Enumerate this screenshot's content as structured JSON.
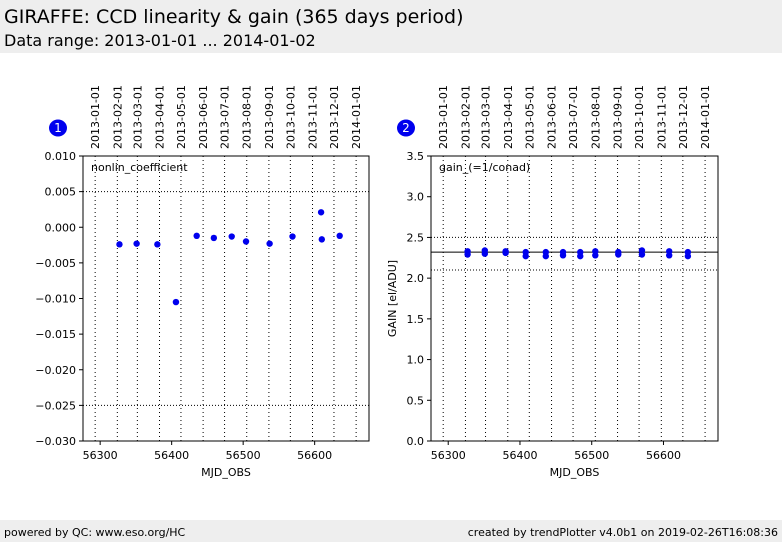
{
  "header": {
    "title": "GIRAFFE: CCD linearity & gain (365 days period)",
    "subtitle": "Data range: 2013-01-01 ... 2014-01-02"
  },
  "footer": {
    "left": "powered by QC: www.eso.org/HC",
    "right": "created by trendPlotter v4.0b1 on 2019-02-26T16:08:36"
  },
  "colors": {
    "points": "#0000ee",
    "badge": "#0000ee"
  },
  "chart_data": [
    {
      "type": "scatter",
      "badge": "1",
      "annotation": "nonlin_coefficient",
      "xlabel": "MJD_OBS",
      "ylabel": "",
      "xlim": [
        56276,
        56676
      ],
      "ylim": [
        -0.03,
        0.01
      ],
      "xticks": [
        56300,
        56400,
        56500,
        56600
      ],
      "yticks": [
        -0.03,
        -0.025,
        -0.02,
        -0.015,
        -0.01,
        -0.005,
        0.0,
        0.005,
        0.01
      ],
      "ytick_labels": [
        "−0.030",
        "−0.025",
        "−0.020",
        "−0.015",
        "−0.010",
        "−0.005",
        "0.000",
        "0.005",
        "0.010"
      ],
      "hlines": [
        0.005,
        -0.025
      ],
      "date_ticks": [
        {
          "mjd": 56293,
          "label": "2013-01-01"
        },
        {
          "mjd": 56324,
          "label": "2013-02-01"
        },
        {
          "mjd": 56352,
          "label": "2013-03-01"
        },
        {
          "mjd": 56383,
          "label": "2013-04-01"
        },
        {
          "mjd": 56413,
          "label": "2013-05-01"
        },
        {
          "mjd": 56444,
          "label": "2013-06-01"
        },
        {
          "mjd": 56474,
          "label": "2013-07-01"
        },
        {
          "mjd": 56505,
          "label": "2013-08-01"
        },
        {
          "mjd": 56536,
          "label": "2013-09-01"
        },
        {
          "mjd": 56566,
          "label": "2013-10-01"
        },
        {
          "mjd": 56597,
          "label": "2013-11-01"
        },
        {
          "mjd": 56627,
          "label": "2013-12-01"
        },
        {
          "mjd": 56658,
          "label": "2014-01-01"
        }
      ],
      "points": [
        [
          56327,
          -0.0024
        ],
        [
          56351,
          -0.0023
        ],
        [
          56380,
          -0.0024
        ],
        [
          56406,
          -0.0105
        ],
        [
          56435,
          -0.0012
        ],
        [
          56459,
          -0.0015
        ],
        [
          56484,
          -0.0013
        ],
        [
          56504,
          -0.002
        ],
        [
          56537,
          -0.0023
        ],
        [
          56569,
          -0.0013
        ],
        [
          56609,
          0.0021
        ],
        [
          56610,
          -0.0017
        ],
        [
          56635,
          -0.0012
        ]
      ]
    },
    {
      "type": "scatter",
      "badge": "2",
      "annotation": "gain_(=1/conad)",
      "xlabel": "MJD_OBS",
      "ylabel": "GAIN [el/ADU]",
      "xlim": [
        56276,
        56676
      ],
      "ylim": [
        0,
        3.5
      ],
      "xticks": [
        56300,
        56400,
        56500,
        56600
      ],
      "yticks": [
        0.0,
        0.5,
        1.0,
        1.5,
        2.0,
        2.5,
        3.0,
        3.5
      ],
      "ytick_labels": [
        "0.0",
        "0.5",
        "1.0",
        "1.5",
        "2.0",
        "2.5",
        "3.0",
        "3.5"
      ],
      "hlines_dotted": [
        2.5,
        2.1
      ],
      "hline_solid": 2.32,
      "date_ticks": [
        {
          "mjd": 56293,
          "label": "2013-01-01"
        },
        {
          "mjd": 56324,
          "label": "2013-02-01"
        },
        {
          "mjd": 56352,
          "label": "2013-03-01"
        },
        {
          "mjd": 56383,
          "label": "2013-04-01"
        },
        {
          "mjd": 56413,
          "label": "2013-05-01"
        },
        {
          "mjd": 56444,
          "label": "2013-06-01"
        },
        {
          "mjd": 56474,
          "label": "2013-07-01"
        },
        {
          "mjd": 56505,
          "label": "2013-08-01"
        },
        {
          "mjd": 56536,
          "label": "2013-09-01"
        },
        {
          "mjd": 56566,
          "label": "2013-10-01"
        },
        {
          "mjd": 56597,
          "label": "2013-11-01"
        },
        {
          "mjd": 56627,
          "label": "2013-12-01"
        },
        {
          "mjd": 56658,
          "label": "2014-01-01"
        }
      ],
      "points": [
        [
          56327,
          2.29
        ],
        [
          56327,
          2.33
        ],
        [
          56351,
          2.3
        ],
        [
          56351,
          2.34
        ],
        [
          56380,
          2.31
        ],
        [
          56380,
          2.33
        ],
        [
          56408,
          2.27
        ],
        [
          56408,
          2.32
        ],
        [
          56436,
          2.27
        ],
        [
          56436,
          2.32
        ],
        [
          56460,
          2.28
        ],
        [
          56460,
          2.32
        ],
        [
          56484,
          2.27
        ],
        [
          56484,
          2.32
        ],
        [
          56505,
          2.28
        ],
        [
          56505,
          2.33
        ],
        [
          56537,
          2.29
        ],
        [
          56537,
          2.32
        ],
        [
          56570,
          2.29
        ],
        [
          56570,
          2.34
        ],
        [
          56608,
          2.28
        ],
        [
          56608,
          2.33
        ],
        [
          56634,
          2.27
        ],
        [
          56634,
          2.32
        ]
      ]
    }
  ]
}
